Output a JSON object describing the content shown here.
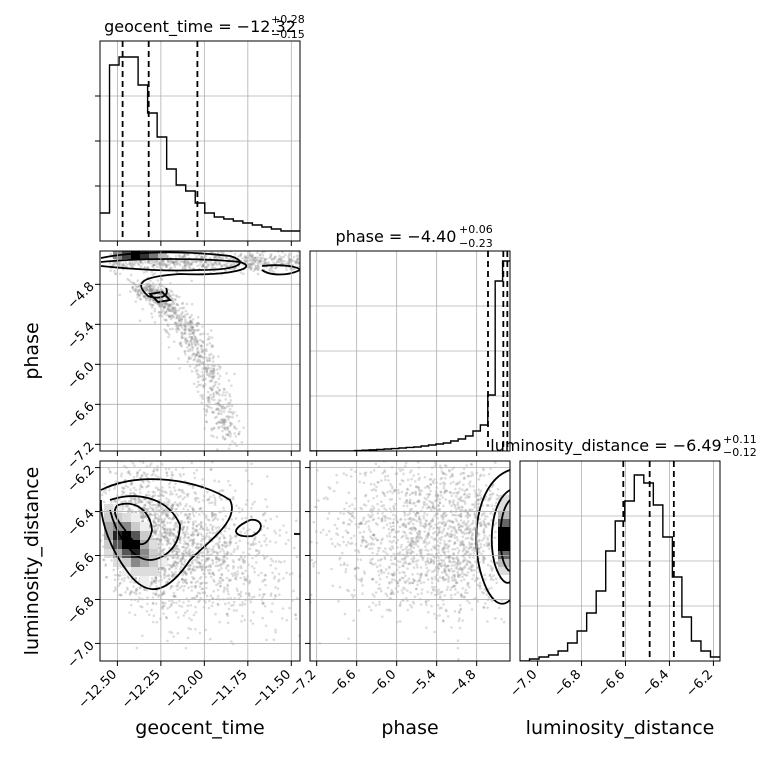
{
  "chart_data": {
    "type": "corner",
    "parameters": [
      {
        "name": "geocent_time",
        "title_main": "geocent_time = −12.32",
        "title_sup": "+0.28",
        "title_sub": "−0.15",
        "median": -12.32,
        "q_low": -12.47,
        "q_high": -12.04,
        "range": [
          -12.6,
          -11.45
        ],
        "ticks": [
          -12.5,
          -12.25,
          -12.0,
          -11.75,
          -11.5
        ],
        "tick_labels": [
          "−12.50",
          "−12.25",
          "−12.00",
          "−11.75",
          "−11.50"
        ],
        "hist": [
          0.14,
          0.88,
          0.92,
          0.92,
          0.78,
          0.64,
          0.52,
          0.36,
          0.28,
          0.25,
          0.19,
          0.14,
          0.12,
          0.11,
          0.1,
          0.09,
          0.08,
          0.07,
          0.06,
          0.05,
          0.05
        ]
      },
      {
        "name": "phase",
        "title_main": "phase = −4.40",
        "title_sup": "+0.06",
        "title_sub": "−0.23",
        "median": -4.4,
        "q_low": -4.63,
        "q_high": -4.34,
        "range": [
          -7.3,
          -4.3
        ],
        "ticks": [
          -7.2,
          -6.6,
          -6.0,
          -5.4,
          -4.8
        ],
        "tick_labels": [
          "−7.2",
          "−6.6",
          "−6.0",
          "−5.4",
          "−4.8"
        ],
        "hist": [
          0,
          0,
          0,
          0,
          0,
          0,
          0.002,
          0.004,
          0.006,
          0.008,
          0.01,
          0.012,
          0.015,
          0.018,
          0.02,
          0.025,
          0.03,
          0.035,
          0.04,
          0.05,
          0.06,
          0.075,
          0.1,
          0.13,
          0.28,
          0.85,
          0.95
        ]
      },
      {
        "name": "luminosity_distance",
        "title_main": "luminosity_distance = −6.49",
        "title_sup": "+0.11",
        "title_sub": "−0.12",
        "median": -6.49,
        "q_low": -6.61,
        "q_high": -6.38,
        "range": [
          -7.08,
          -6.17
        ],
        "ticks": [
          -7.0,
          -6.8,
          -6.6,
          -6.4,
          -6.2
        ],
        "tick_labels": [
          "−7.0",
          "−6.8",
          "−6.6",
          "−6.4",
          "−6.2"
        ],
        "hist": [
          0.0,
          0.01,
          0.02,
          0.03,
          0.05,
          0.09,
          0.15,
          0.24,
          0.35,
          0.55,
          0.7,
          0.8,
          0.93,
          0.89,
          0.78,
          0.62,
          0.42,
          0.22,
          0.1,
          0.05,
          0.02
        ]
      }
    ],
    "axis_labels": {
      "x": [
        "geocent_time",
        "phase",
        "luminosity_distance"
      ],
      "y": [
        "phase",
        "luminosity_distance"
      ]
    },
    "grid": true,
    "quantiles": [
      0.16,
      0.5,
      0.84
    ],
    "colors": {
      "line": "#000000",
      "grid": "#b0b0b0",
      "points": "#808080"
    }
  }
}
